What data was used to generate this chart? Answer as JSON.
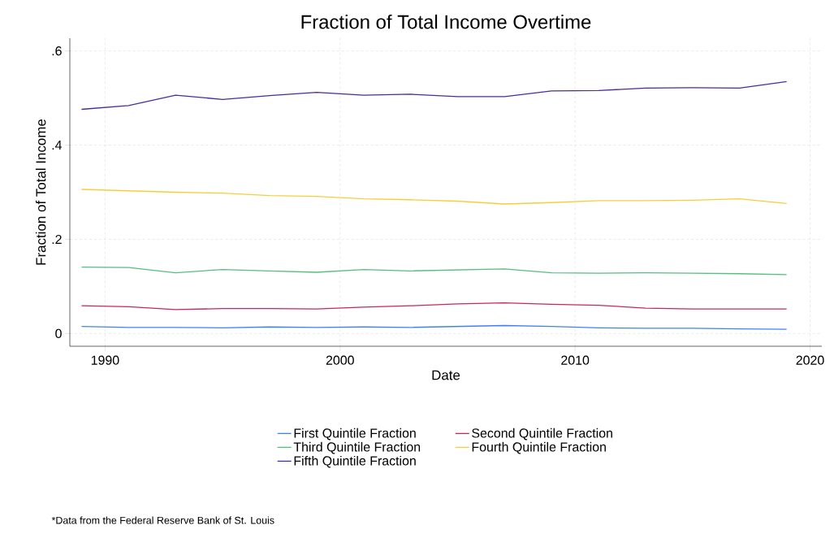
{
  "chart_data": {
    "type": "line",
    "title": "Fraction of Total Income Overtime",
    "xlabel": "Date",
    "ylabel": "Fraction of Total Income",
    "annotations": [
      "*Data from the Federal Reserve Bank of St. Louis"
    ],
    "x": [
      1989,
      1991,
      1993,
      1995,
      1997,
      1999,
      2001,
      2003,
      2005,
      2007,
      2009,
      2011,
      2013,
      2015,
      2017,
      2019
    ],
    "series": [
      {
        "name": "First Quintile Fraction",
        "color": "#3f82f7",
        "values": [
          0.015,
          0.013,
          0.013,
          0.012,
          0.014,
          0.013,
          0.014,
          0.013,
          0.015,
          0.017,
          0.015,
          0.012,
          0.011,
          0.011,
          0.01,
          0.009
        ]
      },
      {
        "name": "Second Quintile Fraction",
        "color": "#c8285a",
        "values": [
          0.059,
          0.057,
          0.051,
          0.053,
          0.053,
          0.052,
          0.056,
          0.059,
          0.063,
          0.065,
          0.062,
          0.06,
          0.054,
          0.052,
          0.052,
          0.052
        ]
      },
      {
        "name": "Third Quintile Fraction",
        "color": "#55bf80",
        "values": [
          0.141,
          0.14,
          0.129,
          0.136,
          0.133,
          0.13,
          0.136,
          0.133,
          0.135,
          0.137,
          0.129,
          0.128,
          0.129,
          0.128,
          0.127,
          0.125
        ]
      },
      {
        "name": "Fourth Quintile Fraction",
        "color": "#f4cf3c",
        "values": [
          0.306,
          0.303,
          0.3,
          0.298,
          0.293,
          0.291,
          0.286,
          0.284,
          0.281,
          0.275,
          0.278,
          0.282,
          0.282,
          0.283,
          0.286,
          0.276
        ]
      },
      {
        "name": "Fifth Quintile Fraction",
        "color": "#4a2c9a",
        "values": [
          0.476,
          0.484,
          0.506,
          0.497,
          0.505,
          0.512,
          0.506,
          0.508,
          0.503,
          0.503,
          0.515,
          0.516,
          0.521,
          0.522,
          0.521,
          0.535
        ]
      }
    ],
    "xlim": [
      1988.5,
      2020.5
    ],
    "ylim": [
      -0.027,
      0.627
    ],
    "xticks": [
      1990,
      2000,
      2010,
      2020
    ],
    "yticks": [
      0,
      {
        "value": 0.2,
        "label": ".2"
      },
      {
        "value": 0.4,
        "label": ".4"
      },
      {
        "value": 0.6,
        "label": ".6"
      }
    ],
    "grid": true,
    "legend": "bottom",
    "line_style": "solid",
    "marker": "none"
  }
}
